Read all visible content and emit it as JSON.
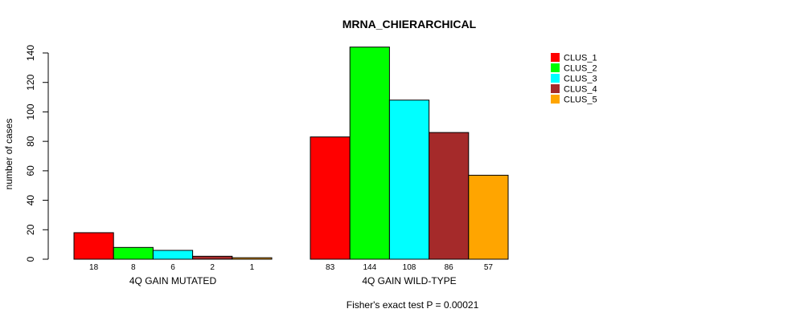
{
  "chart_data": {
    "type": "bar",
    "title": "MRNA_CHIERARCHICAL",
    "ylabel": "number of cases",
    "ylim": [
      0,
      140
    ],
    "yticks": [
      0,
      20,
      40,
      60,
      80,
      100,
      120,
      140
    ],
    "groups": [
      {
        "name": "4Q GAIN MUTATED",
        "values": [
          18,
          8,
          6,
          2,
          1
        ]
      },
      {
        "name": "4Q GAIN WILD-TYPE",
        "values": [
          83,
          144,
          108,
          86,
          57
        ]
      }
    ],
    "series": [
      {
        "name": "CLUS_1",
        "color": "#ff0000"
      },
      {
        "name": "CLUS_2",
        "color": "#00ff00"
      },
      {
        "name": "CLUS_3",
        "color": "#00ffff"
      },
      {
        "name": "CLUS_4",
        "color": "#a52a2a"
      },
      {
        "name": "CLUS_5",
        "color": "#ffa500"
      }
    ],
    "legend_position": "top-right",
    "footer": "Fisher's exact test P = 0.00021"
  }
}
